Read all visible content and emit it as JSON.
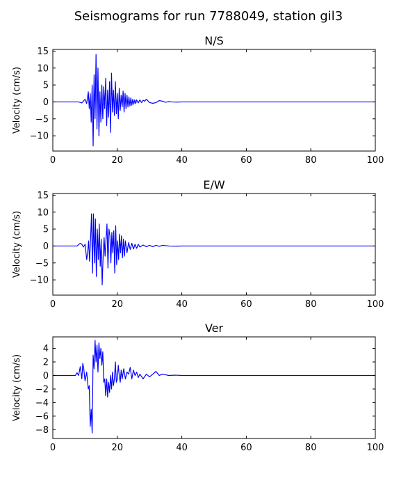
{
  "figure": {
    "suptitle": "Seismograms for run 7788049, station gil3"
  },
  "chart_data": [
    {
      "type": "line",
      "title": "N/S",
      "xlabel": "",
      "ylabel": "Velocity (cm/s)",
      "xlim": [
        0,
        100
      ],
      "ylim": [
        -14.5,
        15.5
      ],
      "xticks": [
        0,
        20,
        40,
        60,
        80,
        100
      ],
      "yticks": [
        -10,
        -5,
        0,
        5,
        10,
        15
      ],
      "grid": false,
      "series": [
        {
          "color": "#0000ff",
          "x": [
            0,
            5,
            8,
            9,
            10,
            10.5,
            11,
            11.3,
            11.6,
            11.9,
            12.2,
            12.5,
            12.8,
            13.1,
            13.4,
            13.7,
            14.0,
            14.3,
            14.6,
            14.9,
            15.2,
            15.5,
            15.8,
            16.1,
            16.4,
            16.7,
            17.0,
            17.3,
            17.6,
            17.9,
            18.2,
            18.5,
            18.8,
            19.1,
            19.4,
            19.7,
            20.0,
            20.3,
            20.6,
            20.9,
            21.2,
            21.5,
            21.8,
            22.1,
            22.4,
            22.7,
            23.0,
            23.3,
            23.6,
            23.9,
            24.2,
            24.5,
            24.8,
            25.1,
            25.4,
            25.7,
            26.0,
            26.5,
            27.0,
            27.5,
            28.0,
            28.5,
            29.0,
            29.5,
            30.0,
            31.0,
            32.0,
            33.0,
            34.0,
            35.0,
            36.0,
            37.0,
            38.0,
            40.0,
            100.0
          ],
          "y": [
            0,
            0,
            0,
            -0.3,
            0.8,
            -0.5,
            3.0,
            -2.0,
            2.5,
            -6.0,
            5.0,
            -13.0,
            8.0,
            -5.0,
            14.0,
            -8.0,
            10.0,
            -10.0,
            3.0,
            -6.0,
            5.0,
            -5.0,
            4.5,
            -2.0,
            7.0,
            -7.0,
            3.5,
            -4.5,
            6.0,
            -9.0,
            8.5,
            -3.0,
            3.5,
            -4.0,
            6.0,
            -3.5,
            2.5,
            -5.0,
            4.0,
            -2.5,
            2.0,
            -1.5,
            3.2,
            -3.0,
            2.5,
            -2.0,
            2.0,
            -1.5,
            1.5,
            -1.2,
            1.2,
            -1.0,
            0.8,
            -0.7,
            0.6,
            -0.5,
            0.6,
            -0.3,
            0.6,
            -0.2,
            0.5,
            0.2,
            0.8,
            0.3,
            -0.2,
            -0.4,
            -0.2,
            0.4,
            0.2,
            -0.1,
            0.1,
            0.0,
            -0.05,
            0.0,
            0.0
          ]
        }
      ]
    },
    {
      "type": "line",
      "title": "E/W",
      "xlabel": "",
      "ylabel": "Velocity (cm/s)",
      "xlim": [
        0,
        100
      ],
      "ylim": [
        -14.5,
        15.5
      ],
      "xticks": [
        0,
        20,
        40,
        60,
        80,
        100
      ],
      "yticks": [
        -10,
        -5,
        0,
        5,
        10,
        15
      ],
      "grid": false,
      "series": [
        {
          "color": "#0000ff",
          "x": [
            0,
            6,
            7.5,
            8.5,
            9.0,
            9.5,
            10.0,
            10.5,
            10.8,
            11.1,
            11.4,
            11.7,
            12.0,
            12.3,
            12.6,
            12.9,
            13.2,
            13.5,
            13.8,
            14.1,
            14.4,
            14.7,
            15.0,
            15.3,
            15.6,
            15.9,
            16.2,
            16.5,
            16.8,
            17.1,
            17.4,
            17.7,
            18.0,
            18.3,
            18.6,
            18.9,
            19.2,
            19.5,
            19.8,
            20.1,
            20.4,
            20.7,
            21.0,
            21.3,
            21.6,
            21.9,
            22.2,
            22.5,
            23.0,
            23.5,
            24.0,
            24.5,
            25.0,
            25.5,
            26.0,
            26.5,
            27.0,
            28.0,
            29.0,
            30.0,
            31.0,
            32.0,
            33.0,
            34.0,
            35.0,
            36.0,
            38.0,
            40.0,
            100.0
          ],
          "y": [
            0,
            0,
            0,
            0.8,
            0.5,
            -0.3,
            0.5,
            -4.0,
            -2.0,
            1.5,
            -4.5,
            2.0,
            9.5,
            -8.0,
            9.5,
            -5.0,
            8.0,
            -9.0,
            5.0,
            -4.0,
            6.5,
            -6.0,
            2.0,
            -11.5,
            -3.0,
            2.5,
            -3.0,
            2.0,
            6.5,
            -6.5,
            5.0,
            3.0,
            -5.0,
            4.0,
            -2.0,
            4.5,
            -8.0,
            6.0,
            -5.5,
            1.5,
            -4.0,
            3.5,
            -2.0,
            3.0,
            -3.5,
            2.0,
            -3.0,
            1.5,
            -2.0,
            1.0,
            -1.0,
            0.8,
            -0.9,
            0.5,
            -0.7,
            0.5,
            -0.3,
            0.3,
            -0.2,
            0.2,
            -0.2,
            0.2,
            -0.1,
            0.2,
            0.1,
            0.0,
            -0.05,
            0.0,
            0.0
          ]
        }
      ]
    },
    {
      "type": "line",
      "title": "Ver",
      "xlabel": "",
      "ylabel": "Velocity (cm/s)",
      "xlim": [
        0,
        100
      ],
      "ylim": [
        -9.3,
        5.7
      ],
      "xticks": [
        0,
        20,
        40,
        60,
        80,
        100
      ],
      "yticks": [
        -8,
        -6,
        -4,
        -2,
        0,
        2,
        4
      ],
      "grid": false,
      "series": [
        {
          "color": "#0000ff",
          "x": [
            0,
            6,
            7,
            7.5,
            8.0,
            8.5,
            9.0,
            9.3,
            9.6,
            10.0,
            10.5,
            11.0,
            11.3,
            11.6,
            11.9,
            12.2,
            12.5,
            12.8,
            13.1,
            13.4,
            13.7,
            14.0,
            14.3,
            14.6,
            14.9,
            15.2,
            15.5,
            15.8,
            16.1,
            16.4,
            16.7,
            17.0,
            17.3,
            17.6,
            17.9,
            18.2,
            18.5,
            18.8,
            19.1,
            19.4,
            19.7,
            20.0,
            20.3,
            20.6,
            20.9,
            21.2,
            21.5,
            22.0,
            22.5,
            23.0,
            23.5,
            24.0,
            24.5,
            25.0,
            25.5,
            26.0,
            26.5,
            27.0,
            28.0,
            29.0,
            30.0,
            31.0,
            32.0,
            33.0,
            34.0,
            36.0,
            38.0,
            40.0,
            100.0
          ],
          "y": [
            0,
            0,
            0,
            0.4,
            0.0,
            1.3,
            -0.5,
            1.8,
            1.0,
            -0.8,
            0.5,
            -2.0,
            -1.5,
            -7.5,
            -5.0,
            -8.5,
            3.0,
            1.0,
            5.2,
            2.0,
            4.5,
            0.5,
            4.8,
            2.5,
            4.0,
            1.5,
            3.5,
            -1.0,
            -0.5,
            -3.0,
            -0.5,
            -3.2,
            -1.0,
            -2.5,
            0.0,
            -2.0,
            0.5,
            -1.5,
            -0.5,
            2.0,
            -1.0,
            -0.5,
            1.5,
            0.0,
            -1.0,
            0.8,
            -0.5,
            1.0,
            -0.5,
            0.5,
            0.2,
            1.2,
            -0.5,
            0.8,
            0.0,
            0.5,
            -0.3,
            0.2,
            -0.5,
            0.2,
            -0.2,
            0.2,
            0.6,
            0.0,
            0.2,
            0.0,
            0.05,
            0.0,
            0.0
          ]
        }
      ]
    }
  ]
}
